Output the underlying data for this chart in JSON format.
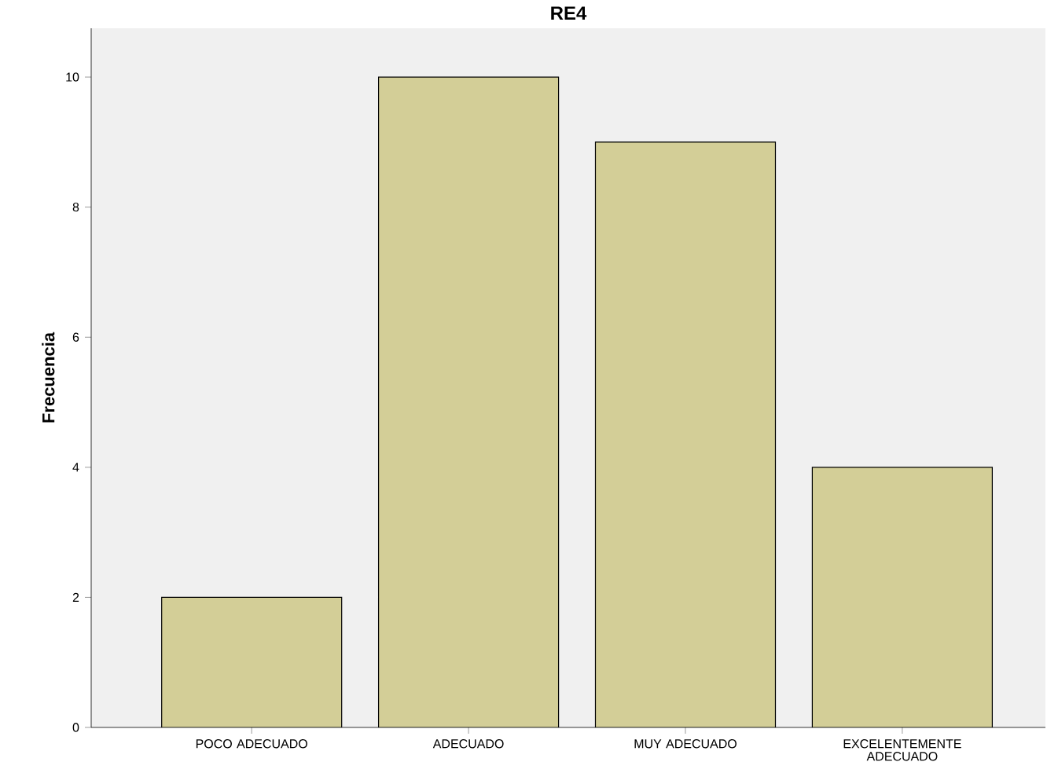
{
  "chart_data": {
    "type": "bar",
    "title": "RE4",
    "ylabel": "Frecuencia",
    "categories": [
      "POCO ADECUADO",
      "ADECUADO",
      "MUY ADECUADO",
      "EXCELENTEMENTE ADECUADO"
    ],
    "values": [
      2,
      10,
      9,
      4
    ],
    "color": "#d3ce97",
    "ylim": [
      0,
      10.75
    ],
    "yticks": [
      0,
      2,
      4,
      6,
      8,
      10
    ],
    "grid": false
  }
}
